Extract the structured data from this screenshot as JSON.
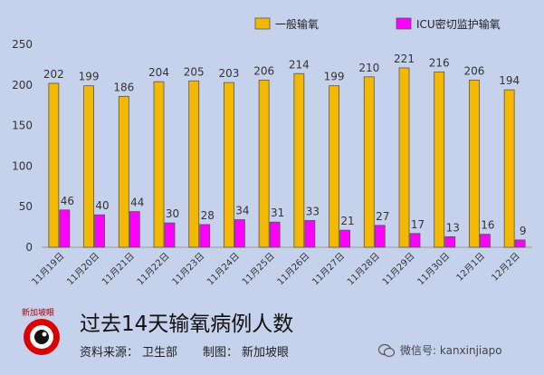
{
  "chart_data": {
    "type": "bar",
    "categories": [
      "11月19日",
      "11月20日",
      "11月21日",
      "11月22日",
      "11月23日",
      "11月24日",
      "11月25日",
      "11月26日",
      "11月27日",
      "11月28日",
      "11月29日",
      "11月30日",
      "12月1日",
      "12月2日"
    ],
    "series": [
      {
        "name": "一般输氧",
        "color": "#f5b800",
        "values": [
          202,
          199,
          186,
          204,
          205,
          203,
          206,
          214,
          199,
          210,
          221,
          216,
          206,
          194
        ]
      },
      {
        "name": "ICU密切监护输氧",
        "color": "#ff00ff",
        "values": [
          46,
          40,
          44,
          30,
          28,
          34,
          31,
          33,
          21,
          27,
          17,
          13,
          16,
          9
        ]
      }
    ],
    "ylim": [
      0,
      250
    ],
    "yticks": [
      0,
      50,
      100,
      150,
      200,
      250
    ],
    "legend": "top-right",
    "grid": false
  },
  "footer": {
    "title": "过去14天输氧病例人数",
    "source_label": "资料来源：",
    "source_value": "卫生部",
    "made_label": "制图：",
    "made_value": "新加坡眼"
  },
  "logo": {
    "text": "新加坡眼"
  },
  "watermark": {
    "text": "微信号: kanxinjiapo"
  }
}
